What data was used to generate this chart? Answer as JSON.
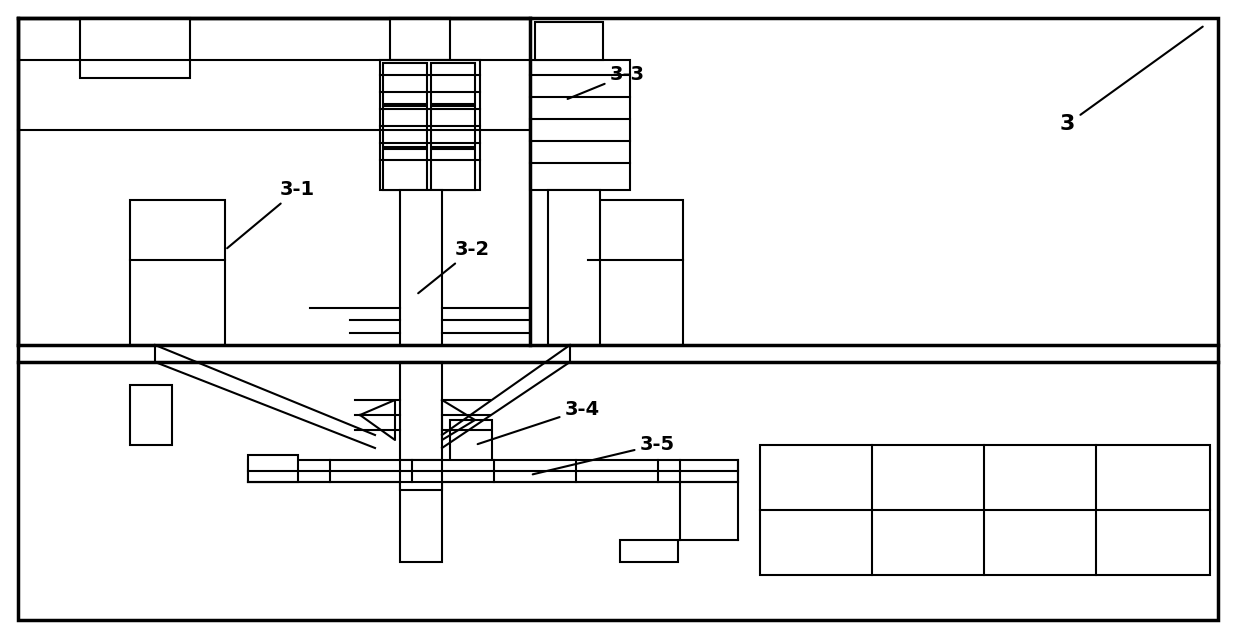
{
  "fig_width": 12.4,
  "fig_height": 6.38,
  "dpi": 100,
  "lw": 1.5,
  "lw2": 2.5
}
